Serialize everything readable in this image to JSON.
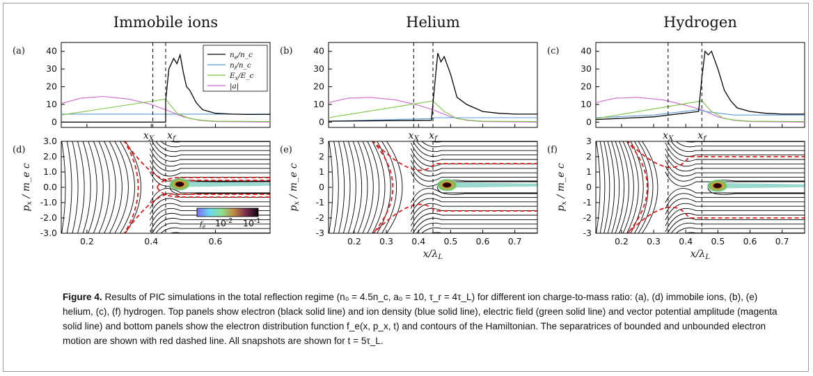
{
  "figure": {
    "panels": [
      {
        "column_title": "Immobile ions",
        "top_label": "(a)",
        "bottom_label": "(d)",
        "top_yticks": [
          "0",
          "10",
          "20",
          "30",
          "40"
        ],
        "bottom_yticks": [
          "-3.0",
          "-2.0",
          "-1.0",
          "0.0",
          "1.0",
          "2.0",
          "3.0"
        ],
        "xticks": [
          "0.2",
          "0.4",
          "0.6"
        ],
        "xX_label": "x_X",
        "xf_label": "x_f",
        "show_xlabel": false,
        "show_colorbar": true
      },
      {
        "column_title": "Helium",
        "top_label": "(b)",
        "bottom_label": "(e)",
        "top_yticks": [
          "0",
          "10",
          "20",
          "30",
          "40"
        ],
        "bottom_yticks": [
          "-3",
          "-2",
          "-1",
          "0",
          "1",
          "2",
          "3"
        ],
        "xticks": [
          "0.2",
          "0.3",
          "0.4",
          "0.5",
          "0.6",
          "0.7"
        ],
        "xX_label": "x_X",
        "xf_label": "x_f",
        "show_xlabel": true,
        "show_colorbar": false
      },
      {
        "column_title": "Hydrogen",
        "top_label": "(c)",
        "bottom_label": "(f)",
        "top_yticks": [
          "0",
          "10",
          "20",
          "30",
          "40"
        ],
        "bottom_yticks": [
          "-3",
          "-2",
          "-1",
          "0",
          "1",
          "2",
          "3"
        ],
        "xticks": [
          "0.2",
          "0.3",
          "0.4",
          "0.5",
          "0.6",
          "0.7"
        ],
        "xX_label": "x_X",
        "xf_label": "x_f",
        "show_xlabel": true,
        "show_colorbar": false
      }
    ],
    "bottom_ylabel": "p_x / m_e c",
    "bottom_xlabel": "x/λ_L",
    "legend": [
      {
        "label": "n_e/n_c",
        "color": "#000000"
      },
      {
        "label": "n_i/n_c",
        "color": "#5b9bd5"
      },
      {
        "label": "E_x/E_c",
        "color": "#7dc242"
      },
      {
        "label": "|a|",
        "color": "#cc66cc"
      }
    ],
    "colorbar": {
      "symbol": "f_e",
      "min_label": "10^-2",
      "max_label": "10^-1"
    },
    "separatrix_color": "#e41a1c"
  },
  "chart_data": [
    {
      "type": "line",
      "panel": "(a)",
      "title": "Immobile ions",
      "xlim": [
        0.12,
        0.77
      ],
      "ylim": [
        -3,
        45
      ],
      "xX": 0.405,
      "xf": 0.445,
      "series": [
        {
          "name": "n_e/n_c",
          "x": [
            0.12,
            0.445,
            0.445,
            0.455,
            0.47,
            0.48,
            0.49,
            0.5,
            0.51,
            0.52,
            0.54,
            0.56,
            0.6,
            0.65,
            0.7,
            0.77
          ],
          "y": [
            0,
            0,
            12,
            30,
            36,
            33,
            38,
            28,
            20,
            18,
            11,
            7,
            5,
            4.5,
            4.3,
            4.4
          ]
        },
        {
          "name": "n_i/n_c",
          "x": [
            0.12,
            0.77
          ],
          "y": [
            4.5,
            4.5
          ]
        },
        {
          "name": "E_x/E_c",
          "x": [
            0.12,
            0.445,
            0.48,
            0.52,
            0.56,
            0.6,
            0.77
          ],
          "y": [
            4,
            13,
            5,
            2,
            1,
            0.5,
            0.3
          ]
        },
        {
          "name": "|a|",
          "x": [
            0.12,
            0.18,
            0.25,
            0.33,
            0.4,
            0.445,
            0.5,
            0.55,
            0.6,
            0.77
          ],
          "y": [
            10.5,
            13.5,
            14.5,
            13,
            10,
            7,
            3,
            1,
            0.3,
            0
          ]
        }
      ]
    },
    {
      "type": "line",
      "panel": "(b)",
      "title": "Helium",
      "xlim": [
        0.12,
        0.77
      ],
      "ylim": [
        -3,
        45
      ],
      "xX": 0.385,
      "xf": 0.445,
      "series": [
        {
          "name": "n_e/n_c",
          "x": [
            0.12,
            0.44,
            0.45,
            0.46,
            0.47,
            0.48,
            0.5,
            0.52,
            0.55,
            0.6,
            0.65,
            0.7,
            0.77
          ],
          "y": [
            0.5,
            1,
            20,
            39,
            34,
            37,
            27,
            14,
            10,
            6,
            5,
            4.5,
            4.5
          ]
        },
        {
          "name": "n_i/n_c",
          "x": [
            0.12,
            0.44,
            0.45,
            0.77
          ],
          "y": [
            0.5,
            2,
            2.5,
            2.5
          ]
        },
        {
          "name": "E_x/E_c",
          "x": [
            0.12,
            0.445,
            0.48,
            0.52,
            0.56,
            0.6,
            0.77
          ],
          "y": [
            2.5,
            12,
            6,
            2,
            1,
            0.5,
            0.3
          ]
        },
        {
          "name": "|a|",
          "x": [
            0.12,
            0.18,
            0.25,
            0.33,
            0.4,
            0.445,
            0.5,
            0.55,
            0.6,
            0.77
          ],
          "y": [
            11,
            13.5,
            14,
            12.5,
            9.5,
            7,
            3,
            1,
            0.3,
            0
          ]
        }
      ]
    },
    {
      "type": "line",
      "panel": "(c)",
      "title": "Hydrogen",
      "xlim": [
        0.12,
        0.77
      ],
      "ylim": [
        -3,
        45
      ],
      "xX": 0.345,
      "xf": 0.45,
      "series": [
        {
          "name": "n_e/n_c",
          "x": [
            0.12,
            0.3,
            0.44,
            0.45,
            0.46,
            0.47,
            0.48,
            0.5,
            0.52,
            0.54,
            0.56,
            0.6,
            0.65,
            0.7,
            0.77
          ],
          "y": [
            1.5,
            3,
            6,
            25,
            40,
            38,
            40,
            30,
            18,
            12,
            8,
            6,
            5,
            4.5,
            4.5
          ]
        },
        {
          "name": "n_i/n_c",
          "x": [
            0.12,
            0.3,
            0.44,
            0.46,
            0.55,
            0.77
          ],
          "y": [
            2.5,
            4,
            7,
            6,
            4,
            4
          ]
        },
        {
          "name": "E_x/E_c",
          "x": [
            0.12,
            0.45,
            0.48,
            0.52,
            0.56,
            0.6,
            0.77
          ],
          "y": [
            2,
            12,
            6,
            2,
            1,
            0.5,
            0.3
          ]
        },
        {
          "name": "|a|",
          "x": [
            0.12,
            0.18,
            0.25,
            0.33,
            0.4,
            0.45,
            0.5,
            0.55,
            0.6,
            0.77
          ],
          "y": [
            11,
            13.5,
            14,
            12.5,
            9.5,
            7,
            3,
            1,
            0.3,
            0
          ]
        }
      ]
    },
    {
      "type": "contour",
      "panel": "(d)",
      "xlim": [
        0.12,
        0.77
      ],
      "ylim": [
        -3,
        3
      ],
      "separatrix_x": 0.405,
      "distribution_peak": [
        0.48,
        0.2
      ]
    },
    {
      "type": "contour",
      "panel": "(e)",
      "xlim": [
        0.12,
        0.77
      ],
      "ylim": [
        -3,
        3
      ],
      "separatrix_x": 0.385,
      "distribution_peak": [
        0.48,
        0.15
      ]
    },
    {
      "type": "contour",
      "panel": "(f)",
      "xlim": [
        0.12,
        0.77
      ],
      "ylim": [
        -3,
        3
      ],
      "separatrix_x": 0.345,
      "distribution_peak": [
        0.49,
        0.1
      ]
    }
  ],
  "caption": {
    "label": "Figure 4.",
    "text": "Results of PIC simulations in the total reflection regime (n₀ = 4.5n_c, a₀ = 10, τ_r = 4τ_L) for different ion charge-to-mass ratio: (a), (d) immobile ions, (b), (e) helium, (c), (f) hydrogen. Top panels show electron (black solid line) and ion density (blue solid line), electric field (green solid line) and vector potential amplitude (magenta solid line) and bottom panels show the electron distribution function f_e(x, p_x, t) and contours of the Hamiltonian. The separatrices of bounded and unbounded electron motion are shown with red dashed line. All snapshots are shown for t = 5τ_L."
  }
}
